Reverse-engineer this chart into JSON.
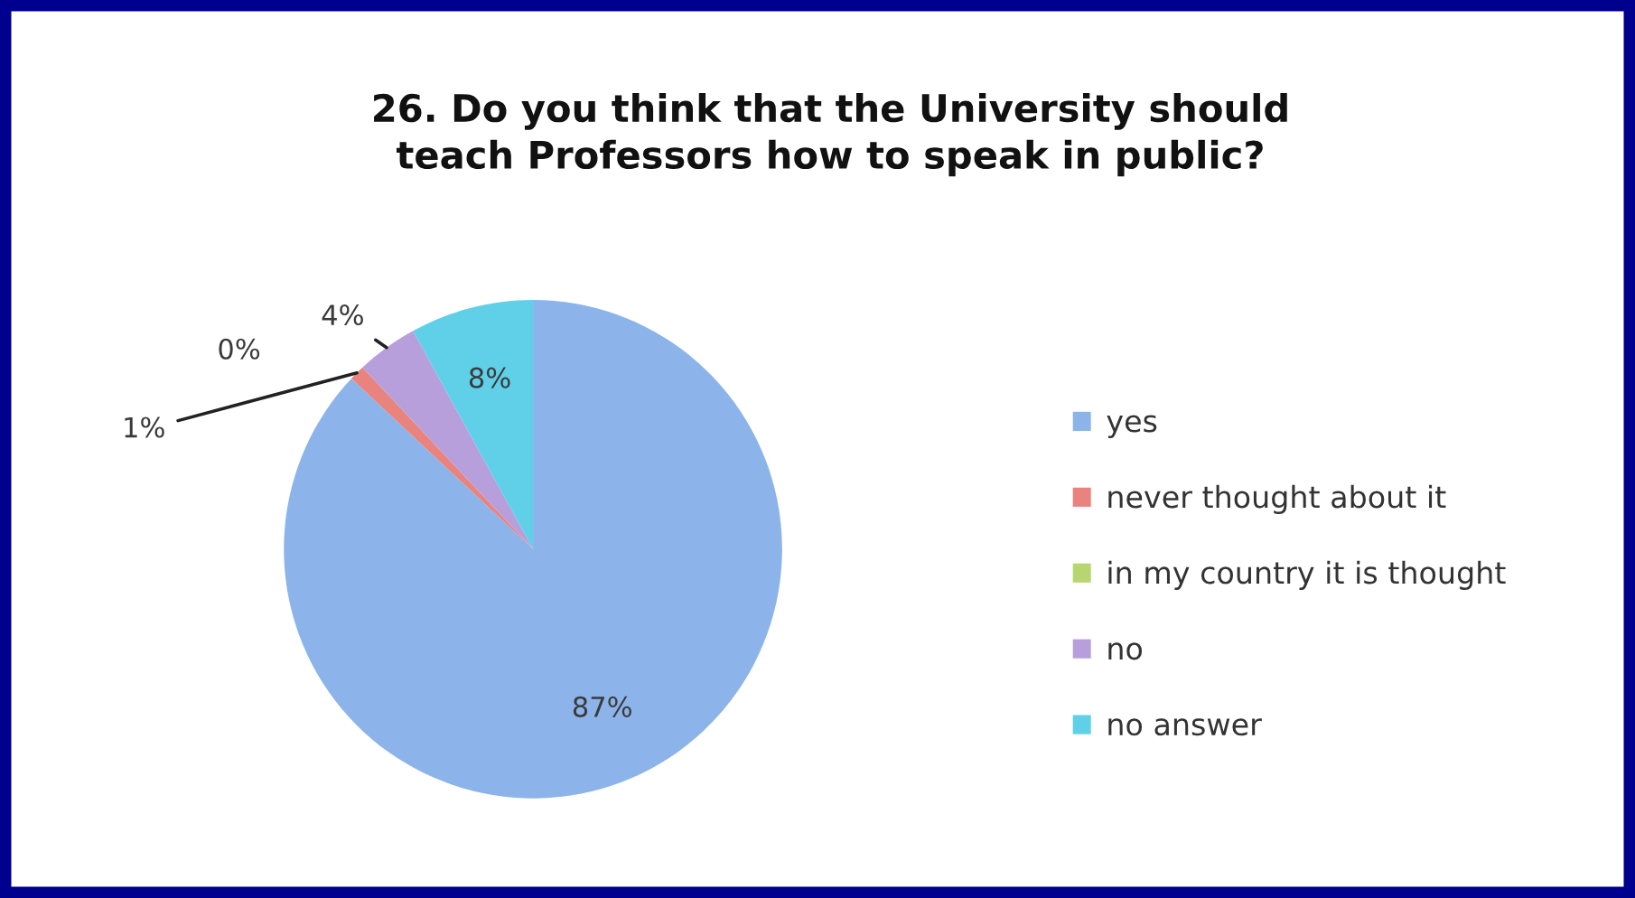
{
  "chart_data": {
    "type": "pie",
    "title": "26. Do you think that the University should\nteach Professors how to speak in public?",
    "categories": [
      "yes",
      "never thought about it",
      "in my country it is thought",
      "no",
      "no answer"
    ],
    "values": [
      87,
      1,
      0,
      4,
      8
    ],
    "colors": [
      "#8cb4ea",
      "#e8837e",
      "#b7d66f",
      "#b79fdb",
      "#5fd0e8"
    ],
    "value_labels": [
      "87%",
      "1%",
      "0%",
      "4%",
      "8%"
    ],
    "legend": "right"
  }
}
